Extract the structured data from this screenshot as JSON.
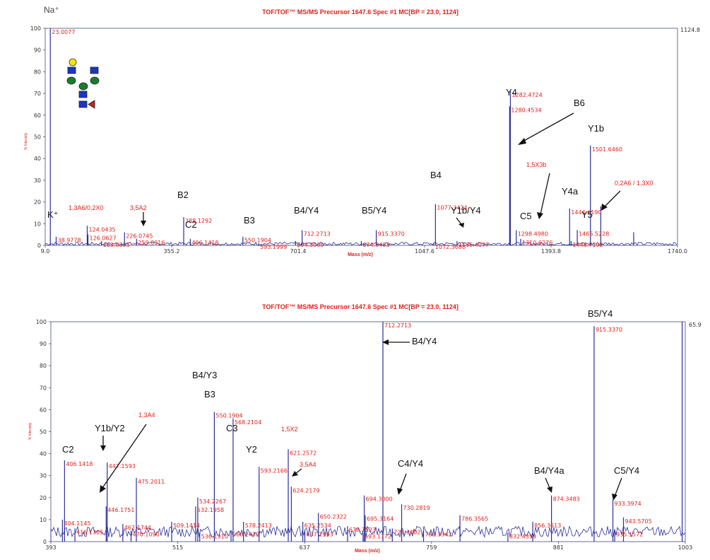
{
  "panels": [
    {
      "title": "TOF/TOF™ MS/MS Precursor 1647.6 Spec #1 MC[BP = 23.0, 1124]",
      "ylabel": "% Intensity",
      "xlabel": "Mass (m/z)",
      "right_label": "1124.8",
      "corner_label": "Na⁺",
      "xticks": [
        "9.0",
        "355.2",
        "701.4",
        "1047.6",
        "1393.8",
        "1740.0"
      ],
      "yticks": [
        "0",
        "10",
        "20",
        "30",
        "40",
        "50",
        "60",
        "70",
        "80",
        "90",
        "100"
      ],
      "ions": [
        "K⁺",
        "C2",
        "B2",
        "B3",
        "B4/Y4",
        "B5/Y4",
        "B4",
        "Y1b/Y4",
        "Y4",
        "B6",
        "C5",
        "Y4a",
        "Y5",
        "Y1b"
      ],
      "red_ions": [
        "1,3A6/0,2X0",
        "3,5A2",
        "1,5X3b",
        "0,2A6 / 1,3X0"
      ]
    },
    {
      "title": "TOF/TOF™ MS/MS Precursor 1647.6 Spec #1 MC[BP = 23.0, 1124]",
      "ylabel": "% Intensity",
      "xlabel": "Mass (m/z)",
      "right_label": "65.9",
      "xticks": [
        "393",
        "515",
        "637",
        "759",
        "881",
        "1003"
      ],
      "yticks": [
        "0",
        "10",
        "20",
        "30",
        "40",
        "50",
        "60",
        "70",
        "80",
        "90",
        "100"
      ],
      "ions": [
        "C2",
        "Y1b/Y2",
        "B4/Y3",
        "B3",
        "C3",
        "Y2",
        "B4/Y4",
        "C4/Y4",
        "B4/Y4a",
        "B5/Y4",
        "C5/Y4"
      ],
      "red_ions": [
        "1,3A4",
        "1,5X2",
        "3,5A4"
      ]
    }
  ],
  "chart_data": [
    {
      "type": "line",
      "title": "TOF/TOF™ MS/MS Precursor 1647.6 Spec #1 MC[BP = 23.0, 1124]",
      "xlabel": "Mass (m/z)",
      "ylabel": "% Intensity",
      "xlim": [
        9.0,
        1740.0
      ],
      "ylim": [
        0,
        100
      ],
      "peaks": [
        {
          "mz": 23.0077,
          "intensity": 100,
          "label": "23.0077"
        },
        {
          "mz": 38.9778,
          "intensity": 4,
          "label": "38.9778"
        },
        {
          "mz": 124.0435,
          "intensity": 9,
          "label": "124.0435"
        },
        {
          "mz": 126.0627,
          "intensity": 5,
          "label": "126.0627"
        },
        {
          "mz": 163.0305,
          "intensity": 2,
          "label": "163.0305"
        },
        {
          "mz": 226.0745,
          "intensity": 6,
          "label": "226.0745"
        },
        {
          "mz": 259.0916,
          "intensity": 3,
          "label": "259.0916"
        },
        {
          "mz": 388.1292,
          "intensity": 13,
          "label": "388.1292"
        },
        {
          "mz": 406.1418,
          "intensity": 3,
          "label": "406.1418"
        },
        {
          "mz": 550.1904,
          "intensity": 4,
          "label": "550.1904"
        },
        {
          "mz": 593.1999,
          "intensity": 1,
          "label": "593.1999"
        },
        {
          "mz": 712.2713,
          "intensity": 7,
          "label": "712.2713"
        },
        {
          "mz": 694.3,
          "intensity": 2,
          "label": "694.3000"
        },
        {
          "mz": 915.337,
          "intensity": 7,
          "label": "915.3370"
        },
        {
          "mz": 874.3483,
          "intensity": 2,
          "label": "874.3483"
        },
        {
          "mz": 1077.3424,
          "intensity": 19,
          "label": "1077.3424"
        },
        {
          "mz": 1072.368,
          "intensity": 1,
          "label": "1072.3680"
        },
        {
          "mz": 1136.4077,
          "intensity": 2,
          "label": "1136.4077"
        },
        {
          "mz": 1282.4724,
          "intensity": 71,
          "label": "1282.4724"
        },
        {
          "mz": 1280.4534,
          "intensity": 64,
          "label": "1280.4534"
        },
        {
          "mz": 1298.498,
          "intensity": 7,
          "label": "1298.4980"
        },
        {
          "mz": 1310.6276,
          "intensity": 3,
          "label": "1310.6276"
        },
        {
          "mz": 1444.619,
          "intensity": 17,
          "label": "1444.6190"
        },
        {
          "mz": 1448.7192,
          "intensity": 2,
          "label": "1448.7192"
        },
        {
          "mz": 1465.5228,
          "intensity": 7,
          "label": "1465.5228"
        },
        {
          "mz": 1501.646,
          "intensity": 46,
          "label": "1501.6460"
        },
        {
          "mz": 1530.0,
          "intensity": 18,
          "label": ""
        },
        {
          "mz": 1620.0,
          "intensity": 6,
          "label": ""
        }
      ]
    },
    {
      "type": "line",
      "title": "TOF/TOF™ MS/MS Precursor 1647.6 Spec #1 MC[BP = 23.0, 1124]",
      "xlabel": "Mass (m/z)",
      "ylabel": "% Intensity",
      "xlim": [
        393,
        1003
      ],
      "ylim": [
        0,
        100
      ],
      "peaks": [
        {
          "mz": 404.1145,
          "intensity": 10,
          "label": "404.1145"
        },
        {
          "mz": 406.1418,
          "intensity": 37,
          "label": "406.1418"
        },
        {
          "mz": 416.1365,
          "intensity": 6,
          "label": "416.1365"
        },
        {
          "mz": 447.1593,
          "intensity": 36,
          "label": "447.1593"
        },
        {
          "mz": 446.1751,
          "intensity": 16,
          "label": "446.1751"
        },
        {
          "mz": 475.2011,
          "intensity": 29,
          "label": "475.2011"
        },
        {
          "mz": 462.1744,
          "intensity": 8,
          "label": "462.1744"
        },
        {
          "mz": 470.109,
          "intensity": 5,
          "label": "470.1090"
        },
        {
          "mz": 509.1414,
          "intensity": 9,
          "label": "509.1414"
        },
        {
          "mz": 550.1904,
          "intensity": 59,
          "label": "550.1904"
        },
        {
          "mz": 534.2267,
          "intensity": 20,
          "label": "534.2267"
        },
        {
          "mz": 532.1958,
          "intensity": 16,
          "label": "532.1958"
        },
        {
          "mz": 536.131,
          "intensity": 4,
          "label": "536.1310"
        },
        {
          "mz": 568.2104,
          "intensity": 56,
          "label": "568.2104"
        },
        {
          "mz": 566.2433,
          "intensity": 5,
          "label": "566.2433"
        },
        {
          "mz": 578.2413,
          "intensity": 9,
          "label": "578.2413"
        },
        {
          "mz": 593.2166,
          "intensity": 34,
          "label": "593.2166"
        },
        {
          "mz": 621.2572,
          "intensity": 42,
          "label": "621.2572"
        },
        {
          "mz": 624.2179,
          "intensity": 25,
          "label": "624.2179"
        },
        {
          "mz": 635.2534,
          "intensity": 9,
          "label": "635.2534"
        },
        {
          "mz": 637.1993,
          "intensity": 5,
          "label": "637.1993"
        },
        {
          "mz": 650.2322,
          "intensity": 13,
          "label": "650.2322"
        },
        {
          "mz": 678.2523,
          "intensity": 7,
          "label": "678.2523"
        },
        {
          "mz": 693.1772,
          "intensity": 4,
          "label": "693.1772"
        },
        {
          "mz": 695.3164,
          "intensity": 12,
          "label": "695.3164"
        },
        {
          "mz": 694.3,
          "intensity": 21,
          "label": "694.3000"
        },
        {
          "mz": 712.2713,
          "intensity": 100,
          "label": "712.2713"
        },
        {
          "mz": 721.3002,
          "intensity": 6,
          "label": "721.3002"
        },
        {
          "mz": 730.2819,
          "intensity": 17,
          "label": "730.2819"
        },
        {
          "mz": 751.3342,
          "intensity": 5,
          "label": "751.3342"
        },
        {
          "mz": 786.3565,
          "intensity": 12,
          "label": "786.3565"
        },
        {
          "mz": 832.4359,
          "intensity": 4,
          "label": "832.4359"
        },
        {
          "mz": 856.3613,
          "intensity": 9,
          "label": "856.3613"
        },
        {
          "mz": 874.3483,
          "intensity": 21,
          "label": "874.3483"
        },
        {
          "mz": 915.337,
          "intensity": 98,
          "label": "915.3370"
        },
        {
          "mz": 933.3974,
          "intensity": 19,
          "label": "933.3974"
        },
        {
          "mz": 943.5705,
          "intensity": 11,
          "label": "943.5705"
        },
        {
          "mz": 935.1572,
          "intensity": 5,
          "label": "935.1572"
        },
        {
          "mz": 1000.0,
          "intensity": 100,
          "label": ""
        }
      ]
    }
  ]
}
